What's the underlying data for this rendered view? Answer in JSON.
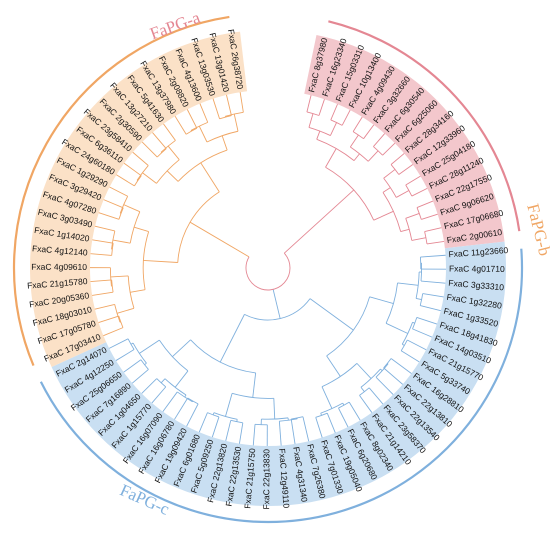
{
  "groups": [
    {
      "name": "FaPG-a",
      "color": "#e48793",
      "fill": "#f3c7cc"
    },
    {
      "name": "FaPG-b",
      "color": "#f0a664",
      "fill": "#fbe1c7"
    },
    {
      "name": "FaPG-c",
      "color": "#7fb0dd",
      "fill": "#c9dff2"
    }
  ],
  "leaves": [
    {
      "label": "FxaC 8g37980",
      "group": 0
    },
    {
      "label": "FxaC 16g23340",
      "group": 0
    },
    {
      "label": "FxaC 15g03310",
      "group": 0
    },
    {
      "label": "FxaC 10g13400",
      "group": 0
    },
    {
      "label": "FxaC 4g09430",
      "group": 0
    },
    {
      "label": "FxaC 3g32660",
      "group": 0
    },
    {
      "label": "FxaC 6g30540",
      "group": 0
    },
    {
      "label": "FxaC 6g25060",
      "group": 0
    },
    {
      "label": "FxaC 28g34160",
      "group": 0
    },
    {
      "label": "FxaC 12g33960",
      "group": 0
    },
    {
      "label": "FxaC 25g04180",
      "group": 0
    },
    {
      "label": "FxaC 28g11240",
      "group": 0
    },
    {
      "label": "FxaC 22g17550",
      "group": 0
    },
    {
      "label": "FxaC 9g06620",
      "group": 0
    },
    {
      "label": "FxaC 17g06680",
      "group": 0
    },
    {
      "label": "FxaC 2g00610",
      "group": 0
    },
    {
      "label": "FxaC 11g23660",
      "group": 2
    },
    {
      "label": "FxaC 4g01710",
      "group": 2
    },
    {
      "label": "FxaC 3g33310",
      "group": 2
    },
    {
      "label": "FxaC 1g32280",
      "group": 2
    },
    {
      "label": "FxaC 1g33520",
      "group": 2
    },
    {
      "label": "FxaC 18g41830",
      "group": 2
    },
    {
      "label": "FxaC 14g03510",
      "group": 2
    },
    {
      "label": "FxaC 21g15770",
      "group": 2
    },
    {
      "label": "FxaC 5g33740",
      "group": 2
    },
    {
      "label": "FxaC 16g28810",
      "group": 2
    },
    {
      "label": "FxaC 22g13810",
      "group": 2
    },
    {
      "label": "FxaC 22g13540",
      "group": 2
    },
    {
      "label": "FxaC 23g58370",
      "group": 2
    },
    {
      "label": "FxaC 21g14210",
      "group": 2
    },
    {
      "label": "FxaC 8g02340",
      "group": 2
    },
    {
      "label": "FxaC 6g20680",
      "group": 2
    },
    {
      "label": "FxaC 19g05040",
      "group": 2
    },
    {
      "label": "FxaC 7g01330",
      "group": 2
    },
    {
      "label": "FxaC 7g26380",
      "group": 2
    },
    {
      "label": "FxaC 4g31340",
      "group": 2
    },
    {
      "label": "FxaC 12g49110",
      "group": 2
    },
    {
      "label": "FxaC 22g13830",
      "group": 2
    },
    {
      "label": "FxaC 21g15750",
      "group": 2
    },
    {
      "label": "FxaC 22g13530",
      "group": 2
    },
    {
      "label": "FxaC 22g13820",
      "group": 2
    },
    {
      "label": "FxaC 5g09250",
      "group": 2
    },
    {
      "label": "FxaC 6g01680",
      "group": 2
    },
    {
      "label": "FxaC 19g09420",
      "group": 2
    },
    {
      "label": "FxaC 16g06780",
      "group": 2
    },
    {
      "label": "FxaC 16g07090",
      "group": 2
    },
    {
      "label": "FxaC 1g15770",
      "group": 2
    },
    {
      "label": "FxaC 1g04650",
      "group": 2
    },
    {
      "label": "FxaC 7g16890",
      "group": 2
    },
    {
      "label": "FxaC 25g06650",
      "group": 2
    },
    {
      "label": "FxaC 4g12250",
      "group": 2
    },
    {
      "label": "FxaC 2g14070",
      "group": 2
    },
    {
      "label": "FxaC 17g03410",
      "group": 1
    },
    {
      "label": "FxaC 17g05780",
      "group": 1
    },
    {
      "label": "FxaC 18g03010",
      "group": 1
    },
    {
      "label": "FxaC 20g05360",
      "group": 1
    },
    {
      "label": "FxaC 21g15780",
      "group": 1
    },
    {
      "label": "FxaC 4g09610",
      "group": 1
    },
    {
      "label": "FxaC 4g12140",
      "group": 1
    },
    {
      "label": "FxaC 1g14020",
      "group": 1
    },
    {
      "label": "FxaC 3g03490",
      "group": 1
    },
    {
      "label": "FxaC 4g07280",
      "group": 1
    },
    {
      "label": "FxaC 3g29420",
      "group": 1
    },
    {
      "label": "FxaC 1g29290",
      "group": 1
    },
    {
      "label": "FxaC 24g60180",
      "group": 1
    },
    {
      "label": "FxaC 6g36110",
      "group": 1
    },
    {
      "label": "FxaC 23g58410",
      "group": 1
    },
    {
      "label": "FxaC 2g30590",
      "group": 1
    },
    {
      "label": "FxaC 13g27210",
      "group": 1
    },
    {
      "label": "FxaC 5g41630",
      "group": 1
    },
    {
      "label": "FxaC 13g37980",
      "group": 1
    },
    {
      "label": "FxaC 2g08820",
      "group": 1
    },
    {
      "label": "FxaC 4g13600",
      "group": 1
    },
    {
      "label": "FxaC 13g03530",
      "group": 1
    },
    {
      "label": "FxaC 13g01420",
      "group": 1
    },
    {
      "label": "FxaC 26g38720",
      "group": 1
    }
  ]
}
